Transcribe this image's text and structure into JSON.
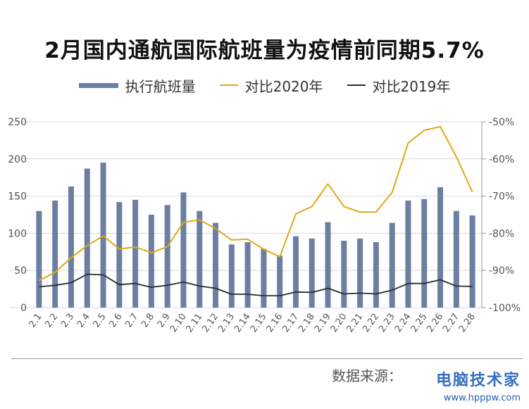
{
  "title": "2月国内通航国际航班量为疫情前同期5.7%",
  "legend": {
    "bar": "执行航班量",
    "line2020": "对比2020年",
    "line2019": "对比2019年"
  },
  "source_text": "数据来源：",
  "watermark": {
    "brand": "电脑技术家",
    "url": "www.hpppw.com"
  },
  "colors": {
    "bar": "#6a7fa3",
    "line2020": "#e0a818",
    "line2019": "#2b2b2b",
    "grid": "#d9d9d9",
    "axis_text": "#555555"
  },
  "chart_data": {
    "type": "bar+line",
    "categories": [
      "2.1",
      "2.2",
      "2.3",
      "2.4",
      "2.5",
      "2.6",
      "2.7",
      "2.8",
      "2.9",
      "2.10",
      "2.11",
      "2.12",
      "2.13",
      "2.14",
      "2.15",
      "2.16",
      "2.17",
      "2.18",
      "2.19",
      "2.20",
      "2.21",
      "2.22",
      "2.23",
      "2.24",
      "2.25",
      "2.26",
      "2.27",
      "2.28"
    ],
    "y_left": {
      "range": [
        0,
        250
      ],
      "ticks": [
        0,
        50,
        100,
        150,
        200,
        250
      ],
      "tick_labels": [
        "0",
        "50",
        "100",
        "150",
        "200",
        "250"
      ]
    },
    "y_right": {
      "range": [
        -100,
        -50
      ],
      "ticks": [
        -100,
        -90,
        -80,
        -70,
        -60,
        -50
      ],
      "tick_labels": [
        "-100%",
        "-90%",
        "-80%",
        "-70%",
        "-60%",
        "-50%"
      ]
    },
    "grid": true,
    "legend_position": "top",
    "series": [
      {
        "name": "执行航班量",
        "type": "bar",
        "axis": "left",
        "values": [
          130,
          144,
          163,
          187,
          195,
          142,
          145,
          125,
          138,
          155,
          130,
          114,
          85,
          88,
          79,
          70,
          96,
          93,
          115,
          90,
          93,
          88,
          114,
          144,
          146,
          162,
          130,
          124
        ]
      },
      {
        "name": "对比2020年",
        "type": "line",
        "axis": "right",
        "values": [
          -92.7,
          -90.5,
          -86.6,
          -83.3,
          -80.7,
          -84.2,
          -83.7,
          -85.2,
          -83.6,
          -77.0,
          -76.4,
          -78.7,
          -81.8,
          -81.6,
          -84.3,
          -86.3,
          -74.8,
          -72.8,
          -66.7,
          -72.8,
          -74.3,
          -74.3,
          -69.0,
          -55.7,
          -52.3,
          -51.3,
          -59.4,
          -68.9
        ]
      },
      {
        "name": "对比2019年",
        "type": "line",
        "axis": "right",
        "values": [
          -94.4,
          -94.0,
          -93.3,
          -91.0,
          -91.2,
          -93.8,
          -93.5,
          -94.5,
          -94.0,
          -93.1,
          -94.2,
          -94.8,
          -96.4,
          -96.4,
          -96.8,
          -96.8,
          -95.8,
          -95.9,
          -94.8,
          -96.3,
          -96.1,
          -96.3,
          -95.3,
          -93.5,
          -93.5,
          -92.5,
          -94.2,
          -94.3
        ]
      }
    ]
  }
}
